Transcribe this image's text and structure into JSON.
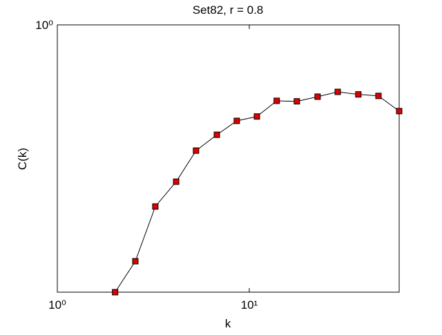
{
  "chart_data": {
    "type": "line",
    "title": "Set82, r = 0.8",
    "x_label": "k",
    "y_label": "C(k)",
    "x": [
      2.0,
      2.55,
      3.24,
      4.16,
      5.28,
      6.78,
      8.61,
      10.96,
      13.9,
      17.7,
      22.7,
      28.9,
      37.0,
      47.1,
      60.4
    ],
    "series": [
      {
        "name": "C(k)",
        "color": "#000000",
        "marker_color": "#dd0000",
        "values": [
          0.2,
          0.241,
          0.335,
          0.389,
          0.469,
          0.516,
          0.561,
          0.576,
          0.633,
          0.631,
          0.649,
          0.668,
          0.658,
          0.652,
          0.595
        ]
      }
    ],
    "xlim": [
      1,
      60.4
    ],
    "ylim": [
      0.2,
      1
    ],
    "xticks": [
      {
        "value": 1,
        "label": "10⁰"
      },
      {
        "value": 10,
        "label": "10¹"
      }
    ],
    "yticks": [
      {
        "value": 1,
        "label": "10⁰"
      }
    ],
    "xscale": "log",
    "yscale": "log"
  }
}
